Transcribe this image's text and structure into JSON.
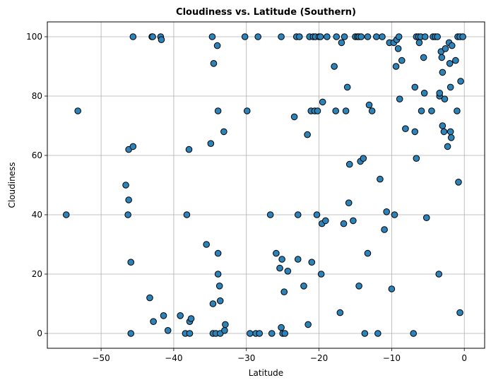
{
  "chart_data": {
    "type": "scatter",
    "title": "Cloudiness vs. Latitude (Southern)",
    "xlabel": "Latitude",
    "ylabel": "Cloudiness",
    "xlim": [
      -57.4,
      2.8
    ],
    "ylim": [
      -5,
      105
    ],
    "xticks": [
      -50,
      -40,
      -30,
      -20,
      -10,
      0
    ],
    "yticks": [
      0,
      20,
      40,
      60,
      80,
      100
    ],
    "grid": true,
    "marker_color": "#2b83ba",
    "edge_color": "#000000",
    "points": [
      [
        -54.8,
        40
      ],
      [
        -53.2,
        75
      ],
      [
        -46.6,
        50
      ],
      [
        -46.3,
        40
      ],
      [
        -46.2,
        45
      ],
      [
        -46.2,
        62
      ],
      [
        -45.9,
        24
      ],
      [
        -45.6,
        63
      ],
      [
        -45.6,
        100
      ],
      [
        -45.9,
        0
      ],
      [
        -43.3,
        12
      ],
      [
        -43.0,
        100
      ],
      [
        -42.9,
        100
      ],
      [
        -42.8,
        4
      ],
      [
        -41.8,
        100
      ],
      [
        -41.7,
        99
      ],
      [
        -41.4,
        6
      ],
      [
        -40.8,
        1
      ],
      [
        -39.1,
        6
      ],
      [
        -38.4,
        0
      ],
      [
        -38.2,
        40
      ],
      [
        -37.9,
        62
      ],
      [
        -37.8,
        4
      ],
      [
        -37.8,
        0
      ],
      [
        -37.6,
        5
      ],
      [
        -35.5,
        30
      ],
      [
        -34.9,
        64
      ],
      [
        -34.7,
        100
      ],
      [
        -34.6,
        10
      ],
      [
        -34.6,
        0
      ],
      [
        -34.5,
        91
      ],
      [
        -34.2,
        0
      ],
      [
        -34.0,
        97
      ],
      [
        -33.9,
        75
      ],
      [
        -33.9,
        27
      ],
      [
        -33.9,
        20
      ],
      [
        -33.7,
        16
      ],
      [
        -33.6,
        11
      ],
      [
        -33.6,
        0
      ],
      [
        -33.1,
        68
      ],
      [
        -33.0,
        1
      ],
      [
        -32.9,
        3
      ],
      [
        -30.2,
        100
      ],
      [
        -29.9,
        75
      ],
      [
        -29.5,
        0
      ],
      [
        -28.7,
        0
      ],
      [
        -28.4,
        100
      ],
      [
        -28.2,
        0
      ],
      [
        -26.7,
        40
      ],
      [
        -26.5,
        0
      ],
      [
        -25.9,
        27
      ],
      [
        -25.4,
        22
      ],
      [
        -25.2,
        100
      ],
      [
        -25.2,
        2
      ],
      [
        -25.1,
        25
      ],
      [
        -25.0,
        0
      ],
      [
        -24.8,
        14
      ],
      [
        -24.7,
        0
      ],
      [
        -24.3,
        21
      ],
      [
        -23.4,
        73
      ],
      [
        -23.1,
        100
      ],
      [
        -22.9,
        40
      ],
      [
        -22.9,
        25
      ],
      [
        -22.7,
        100
      ],
      [
        -22.1,
        16
      ],
      [
        -21.6,
        67
      ],
      [
        -21.5,
        3
      ],
      [
        -21.3,
        100
      ],
      [
        -21.1,
        75
      ],
      [
        -21.0,
        24
      ],
      [
        -20.8,
        100
      ],
      [
        -20.6,
        75
      ],
      [
        -20.5,
        100
      ],
      [
        -20.3,
        40
      ],
      [
        -20.2,
        75
      ],
      [
        -20.0,
        100
      ],
      [
        -19.8,
        100
      ],
      [
        -19.7,
        20
      ],
      [
        -19.6,
        37
      ],
      [
        -19.5,
        78
      ],
      [
        -19.1,
        38
      ],
      [
        -18.9,
        100
      ],
      [
        -17.9,
        90
      ],
      [
        -17.7,
        75
      ],
      [
        -17.6,
        100
      ],
      [
        -17.1,
        7
      ],
      [
        -16.9,
        98
      ],
      [
        -16.6,
        37
      ],
      [
        -16.5,
        100
      ],
      [
        -16.3,
        75
      ],
      [
        -16.1,
        83
      ],
      [
        -15.9,
        44
      ],
      [
        -15.8,
        57
      ],
      [
        -15.3,
        38
      ],
      [
        -15.0,
        100
      ],
      [
        -14.7,
        100
      ],
      [
        -14.5,
        16
      ],
      [
        -14.5,
        100
      ],
      [
        -14.3,
        58
      ],
      [
        -14.2,
        100
      ],
      [
        -13.9,
        59
      ],
      [
        -13.7,
        0
      ],
      [
        -13.3,
        100
      ],
      [
        -13.3,
        27
      ],
      [
        -13.1,
        77
      ],
      [
        -12.7,
        75
      ],
      [
        -12.1,
        100
      ],
      [
        -11.9,
        0
      ],
      [
        -11.6,
        52
      ],
      [
        -11.3,
        100
      ],
      [
        -11.0,
        35
      ],
      [
        -10.7,
        41
      ],
      [
        -10.3,
        98
      ],
      [
        -10.0,
        15
      ],
      [
        -9.7,
        98
      ],
      [
        -9.6,
        40
      ],
      [
        -9.4,
        90
      ],
      [
        -9.3,
        99
      ],
      [
        -9.1,
        96
      ],
      [
        -9.0,
        100
      ],
      [
        -8.9,
        79
      ],
      [
        -8.6,
        92
      ],
      [
        -8.1,
        69
      ],
      [
        -7.0,
        0
      ],
      [
        -6.8,
        68
      ],
      [
        -6.8,
        83
      ],
      [
        -6.6,
        59
      ],
      [
        -6.6,
        100
      ],
      [
        -6.3,
        100
      ],
      [
        -6.2,
        98
      ],
      [
        -6.0,
        100
      ],
      [
        -5.9,
        75
      ],
      [
        -5.6,
        93
      ],
      [
        -5.5,
        81
      ],
      [
        -5.4,
        100
      ],
      [
        -5.2,
        39
      ],
      [
        -4.5,
        75
      ],
      [
        -4.3,
        100
      ],
      [
        -4.0,
        100
      ],
      [
        -3.7,
        100
      ],
      [
        -3.5,
        20
      ],
      [
        -3.4,
        80
      ],
      [
        -3.4,
        81
      ],
      [
        -3.2,
        95
      ],
      [
        -3.1,
        93
      ],
      [
        -3.0,
        70
      ],
      [
        -3.0,
        88
      ],
      [
        -2.8,
        68
      ],
      [
        -2.7,
        79
      ],
      [
        -2.6,
        96
      ],
      [
        -2.3,
        63
      ],
      [
        -2.1,
        98
      ],
      [
        -2.0,
        91
      ],
      [
        -1.9,
        83
      ],
      [
        -1.9,
        68
      ],
      [
        -1.8,
        66
      ],
      [
        -1.7,
        97
      ],
      [
        -1.2,
        92
      ],
      [
        -1.0,
        75
      ],
      [
        -0.9,
        100
      ],
      [
        -0.8,
        51
      ],
      [
        -0.6,
        100
      ],
      [
        -0.6,
        7
      ],
      [
        -0.5,
        85
      ],
      [
        -0.2,
        100
      ]
    ]
  }
}
